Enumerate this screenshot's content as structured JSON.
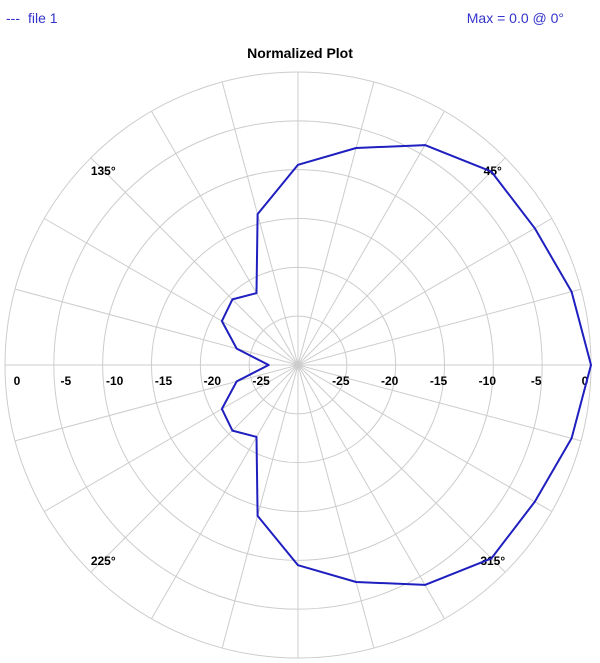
{
  "legend": {
    "marker": "---",
    "label": "file 1"
  },
  "max_info": "Max = 0.0 @ 0°",
  "chart_data": {
    "type": "polar-line",
    "title": "Normalized Plot",
    "radial_range": [
      -30,
      0
    ],
    "radial_unit": "dB",
    "radial_ticks": [
      0,
      -5,
      -10,
      -15,
      -20,
      -25
    ],
    "radial_tick_labels": [
      "0",
      "-5",
      "-10",
      "-15",
      "-20",
      "-25"
    ],
    "angle_ticks_deg": [
      0,
      15,
      30,
      45,
      60,
      75,
      90,
      105,
      120,
      135,
      150,
      165,
      180,
      195,
      210,
      225,
      240,
      255,
      270,
      285,
      300,
      315,
      330,
      345
    ],
    "angle_labels": [
      {
        "angle": 45,
        "text": "45°"
      },
      {
        "angle": 135,
        "text": "135°"
      },
      {
        "angle": 225,
        "text": "225°"
      },
      {
        "angle": 315,
        "text": "315°"
      }
    ],
    "grid": true,
    "line_color": "#1f1fbf",
    "series": [
      {
        "name": "file 1",
        "angles_deg": [
          0,
          15,
          30,
          45,
          60,
          75,
          90,
          105,
          120,
          135,
          150,
          165,
          180,
          195,
          210,
          225,
          240,
          255,
          270,
          285,
          300,
          315,
          330,
          345
        ],
        "values_db": [
          0,
          -1,
          -2,
          -2,
          -4,
          -7,
          -9.5,
          -14,
          -21.5,
          -20.5,
          -21,
          -23.5,
          -27,
          -23.5,
          -21,
          -20.5,
          -21.5,
          -14,
          -9.5,
          -7,
          -4,
          -2,
          -2,
          -1
        ]
      }
    ]
  }
}
